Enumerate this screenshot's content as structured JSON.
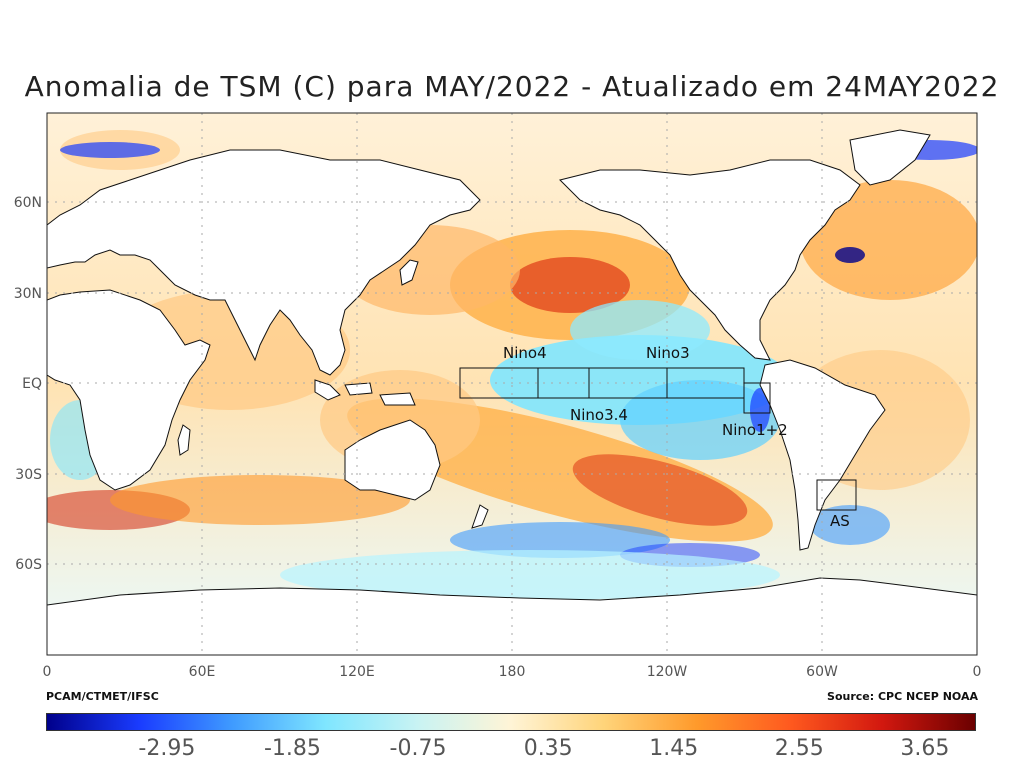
{
  "title": "Anomalia de TSM (C) para MAY/2022 - Atualizado em 24MAY2022",
  "y_axis_labels": [
    "60N",
    "30N",
    "EQ",
    "30S",
    "60S"
  ],
  "x_axis_labels": [
    "0",
    "60E",
    "120E",
    "180",
    "120W",
    "60W",
    "0"
  ],
  "regions": [
    {
      "name": "Nino4",
      "label": "Nino4"
    },
    {
      "name": "Nino3.4",
      "label": "Nino3.4"
    },
    {
      "name": "Nino3",
      "label": "Nino3"
    },
    {
      "name": "Nino1+2",
      "label": "Nino1+2"
    },
    {
      "name": "AS",
      "label": "AS"
    }
  ],
  "footer": {
    "left": "PCAM/CTMET/IFSC",
    "right": "Source: CPC NCEP NOAA"
  },
  "colorbar": {
    "tick_labels": [
      "-2.95",
      "-1.85",
      "-0.75",
      "0.35",
      "1.45",
      "2.55",
      "3.65"
    ],
    "colors": [
      "#00008b",
      "#1a3cff",
      "#3f9bff",
      "#7fe6ff",
      "#c9f3f3",
      "#fff4d6",
      "#ffd47a",
      "#ff9a2b",
      "#ff5a1f",
      "#d2180f",
      "#6b0000"
    ]
  }
}
